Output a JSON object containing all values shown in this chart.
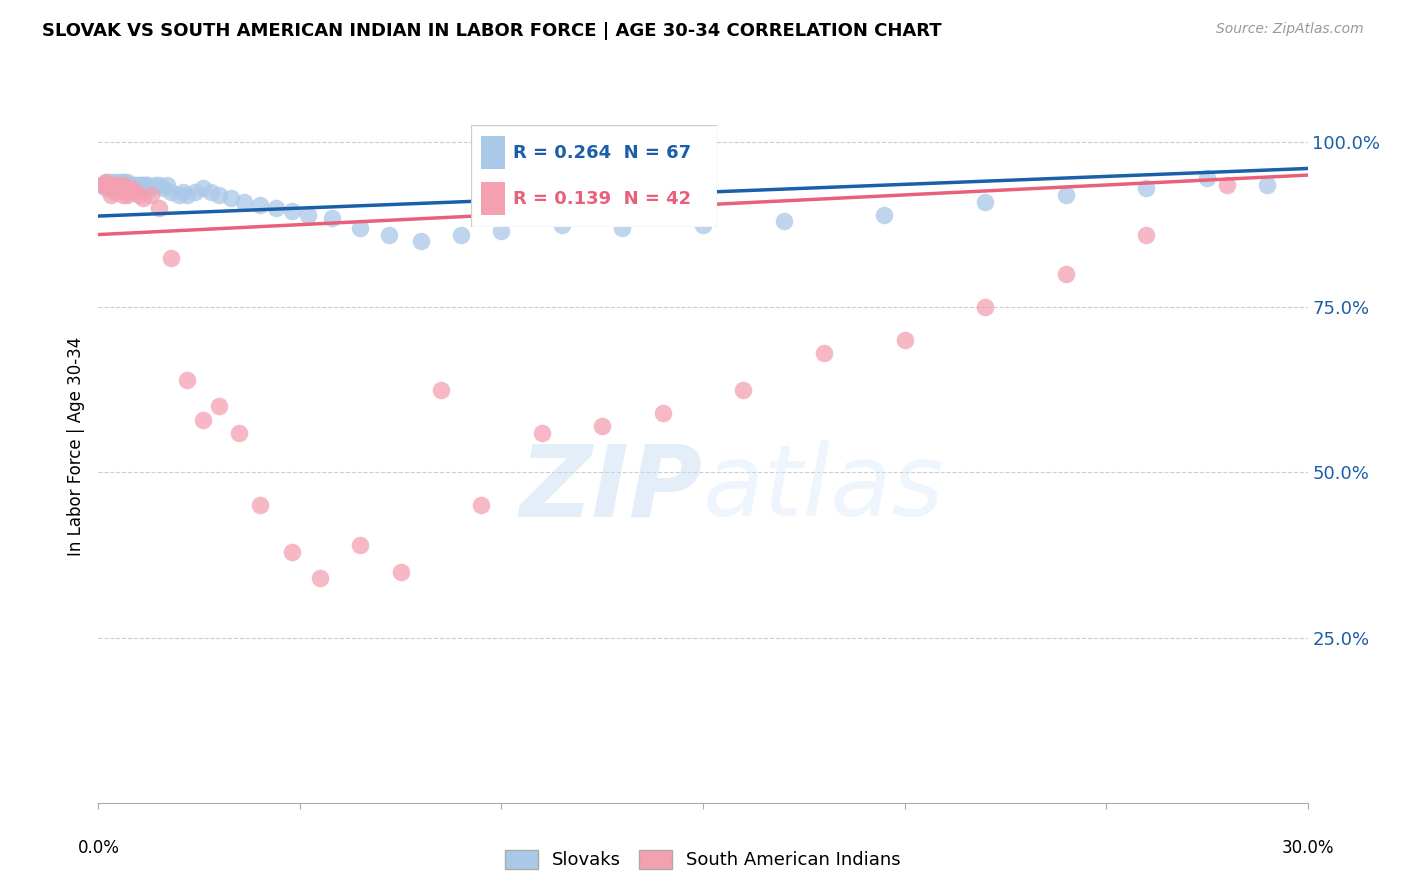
{
  "title": "SLOVAK VS SOUTH AMERICAN INDIAN IN LABOR FORCE | AGE 30-34 CORRELATION CHART",
  "source": "Source: ZipAtlas.com",
  "ylabel": "In Labor Force | Age 30-34",
  "ytick_labels": [
    "100.0%",
    "75.0%",
    "50.0%",
    "25.0%"
  ],
  "ytick_values": [
    1.0,
    0.75,
    0.5,
    0.25
  ],
  "xmin": 0.0,
  "xmax": 0.3,
  "ymin": 0.0,
  "ymax": 1.08,
  "legend_slovak_r": "R = 0.264",
  "legend_slovak_n": "N = 67",
  "legend_sai_r": "R = 0.139",
  "legend_sai_n": "N = 42",
  "watermark_zip": "ZIP",
  "watermark_atlas": "atlas",
  "background_color": "#ffffff",
  "grid_color": "#cccccc",
  "slovak_color": "#aac8e8",
  "slovak_line_color": "#1a5fa8",
  "sai_color": "#f4a0b0",
  "sai_line_color": "#e8607a",
  "legend_r_blue_color": "#1a5fa8",
  "legend_n_green_color": "#22aa44",
  "legend_sai_r_color": "#e8607a",
  "slovak_x": [
    0.001,
    0.002,
    0.002,
    0.003,
    0.003,
    0.003,
    0.004,
    0.004,
    0.004,
    0.004,
    0.005,
    0.005,
    0.005,
    0.005,
    0.006,
    0.006,
    0.006,
    0.007,
    0.007,
    0.007,
    0.007,
    0.008,
    0.008,
    0.008,
    0.009,
    0.009,
    0.01,
    0.01,
    0.011,
    0.011,
    0.012,
    0.012,
    0.013,
    0.014,
    0.015,
    0.016,
    0.017,
    0.018,
    0.02,
    0.021,
    0.022,
    0.024,
    0.026,
    0.028,
    0.03,
    0.033,
    0.036,
    0.04,
    0.044,
    0.048,
    0.052,
    0.058,
    0.065,
    0.072,
    0.08,
    0.09,
    0.1,
    0.115,
    0.13,
    0.15,
    0.17,
    0.195,
    0.22,
    0.24,
    0.26,
    0.275,
    0.29
  ],
  "slovak_y": [
    0.935,
    0.93,
    0.94,
    0.935,
    0.935,
    0.94,
    0.935,
    0.94,
    0.935,
    0.93,
    0.935,
    0.935,
    0.935,
    0.94,
    0.935,
    0.94,
    0.94,
    0.935,
    0.94,
    0.935,
    0.93,
    0.935,
    0.935,
    0.935,
    0.935,
    0.935,
    0.935,
    0.935,
    0.935,
    0.935,
    0.935,
    0.935,
    0.93,
    0.935,
    0.935,
    0.93,
    0.935,
    0.925,
    0.92,
    0.925,
    0.92,
    0.925,
    0.93,
    0.925,
    0.92,
    0.915,
    0.91,
    0.905,
    0.9,
    0.895,
    0.89,
    0.885,
    0.87,
    0.86,
    0.85,
    0.86,
    0.865,
    0.875,
    0.87,
    0.875,
    0.88,
    0.89,
    0.91,
    0.92,
    0.93,
    0.945,
    0.935
  ],
  "sai_x": [
    0.001,
    0.002,
    0.002,
    0.003,
    0.003,
    0.004,
    0.004,
    0.005,
    0.005,
    0.005,
    0.006,
    0.006,
    0.007,
    0.007,
    0.008,
    0.009,
    0.01,
    0.011,
    0.013,
    0.015,
    0.018,
    0.022,
    0.026,
    0.03,
    0.035,
    0.04,
    0.048,
    0.055,
    0.065,
    0.075,
    0.085,
    0.095,
    0.11,
    0.125,
    0.14,
    0.16,
    0.18,
    0.2,
    0.22,
    0.24,
    0.26,
    0.28
  ],
  "sai_y": [
    0.935,
    0.94,
    0.935,
    0.93,
    0.92,
    0.935,
    0.925,
    0.935,
    0.935,
    0.93,
    0.935,
    0.92,
    0.925,
    0.92,
    0.93,
    0.925,
    0.92,
    0.915,
    0.92,
    0.9,
    0.825,
    0.64,
    0.58,
    0.6,
    0.56,
    0.45,
    0.38,
    0.34,
    0.39,
    0.35,
    0.625,
    0.45,
    0.56,
    0.57,
    0.59,
    0.625,
    0.68,
    0.7,
    0.75,
    0.8,
    0.86,
    0.935
  ],
  "slovak_trendline_x": [
    0.0,
    0.3
  ],
  "slovak_trendline_y": [
    0.888,
    0.96
  ],
  "sai_trendline_x": [
    0.0,
    0.3
  ],
  "sai_trendline_y": [
    0.86,
    0.95
  ]
}
